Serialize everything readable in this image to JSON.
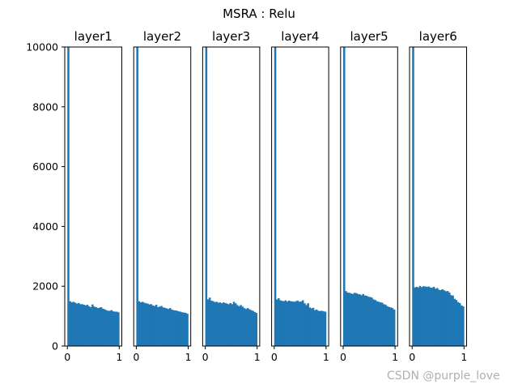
{
  "figure": {
    "suptitle": "MSRA : Relu",
    "watermark": "CSDN @purple_love"
  },
  "chart_data": {
    "type": "bar",
    "kind": "histogram-grid",
    "ylim": [
      0,
      10000
    ],
    "xlim": [
      -0.05,
      1.05
    ],
    "yticks": [
      0,
      2000,
      4000,
      6000,
      8000,
      10000
    ],
    "xticks": [
      0,
      1
    ],
    "bar_color": "#1f77b4",
    "bin_width": 0.0333,
    "panels": [
      {
        "title": "layer1",
        "values": [
          10000,
          1500,
          1460,
          1480,
          1450,
          1420,
          1440,
          1400,
          1400,
          1380,
          1360,
          1380,
          1330,
          1300,
          1390,
          1320,
          1300,
          1270,
          1280,
          1300,
          1250,
          1230,
          1200,
          1180,
          1180,
          1200,
          1160,
          1150,
          1150,
          1130
        ]
      },
      {
        "title": "layer2",
        "values": [
          10000,
          1500,
          1460,
          1480,
          1450,
          1430,
          1420,
          1390,
          1400,
          1360,
          1340,
          1380,
          1300,
          1320,
          1340,
          1290,
          1280,
          1260,
          1240,
          1270,
          1220,
          1200,
          1190,
          1180,
          1160,
          1150,
          1130,
          1120,
          1110,
          1080
        ]
      },
      {
        "title": "layer3",
        "values": [
          10000,
          1560,
          1620,
          1520,
          1500,
          1470,
          1480,
          1450,
          1460,
          1430,
          1460,
          1440,
          1420,
          1400,
          1440,
          1400,
          1480,
          1430,
          1370,
          1330,
          1370,
          1320,
          1270,
          1240,
          1270,
          1230,
          1200,
          1180,
          1140,
          1110
        ]
      },
      {
        "title": "layer4",
        "values": [
          10000,
          1560,
          1600,
          1530,
          1510,
          1500,
          1530,
          1490,
          1520,
          1500,
          1490,
          1480,
          1500,
          1520,
          1480,
          1490,
          1530,
          1430,
          1370,
          1430,
          1290,
          1260,
          1280,
          1200,
          1220,
          1180,
          1170,
          1180,
          1160,
          1150
        ]
      },
      {
        "title": "layer5",
        "values": [
          10000,
          1840,
          1790,
          1780,
          1760,
          1740,
          1780,
          1770,
          1740,
          1730,
          1700,
          1740,
          1690,
          1680,
          1650,
          1640,
          1620,
          1560,
          1540,
          1500,
          1480,
          1460,
          1450,
          1400,
          1380,
          1330,
          1310,
          1290,
          1270,
          1220
        ]
      },
      {
        "title": "layer6",
        "values": [
          10000,
          1960,
          1980,
          1960,
          2010,
          1970,
          2000,
          1990,
          1980,
          1990,
          1960,
          1950,
          1980,
          1920,
          1940,
          1880,
          1870,
          1900,
          1860,
          1830,
          1840,
          1790,
          1700,
          1690,
          1580,
          1540,
          1470,
          1440,
          1360,
          1330
        ]
      }
    ]
  }
}
